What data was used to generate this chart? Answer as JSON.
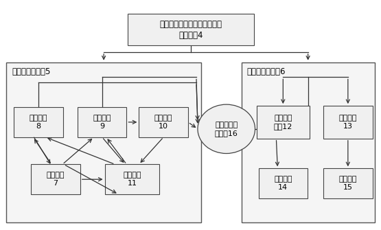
{
  "title_line1": "波形采集显示和数据分析处理",
  "title_line2": "软件系统4",
  "left_group_title": "波形采集与显示5",
  "right_group_title": "数据分析与处理6",
  "circle_text_line1": "波形数据存",
  "circle_text_line2": "储队列16",
  "bg_color": "#ffffff",
  "box_facecolor": "#f0f0f0",
  "box_edgecolor": "#444444",
  "group_edgecolor": "#555555",
  "group_facecolor": "#f5f5f5"
}
